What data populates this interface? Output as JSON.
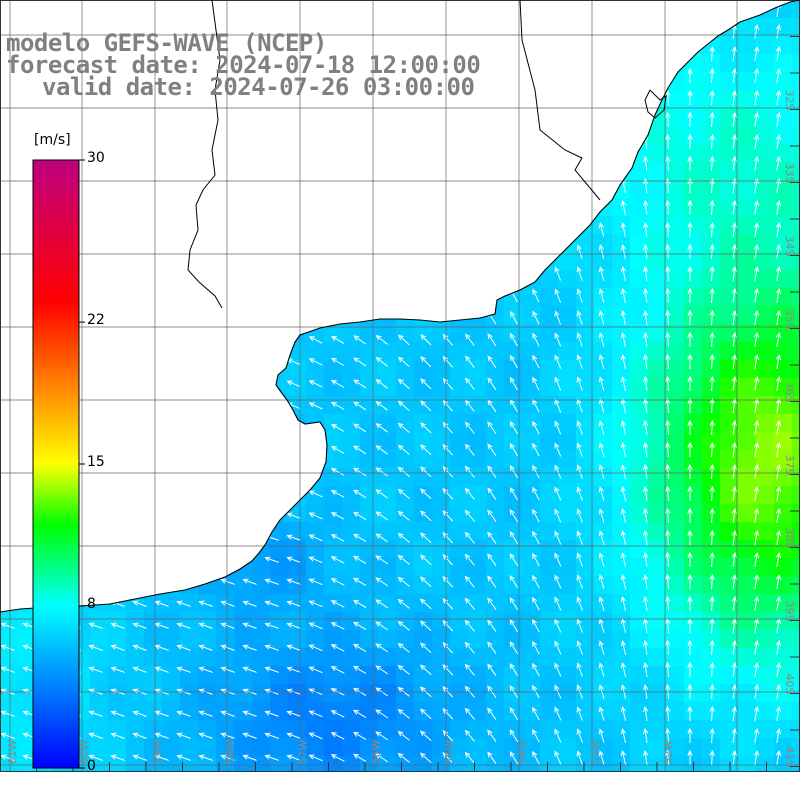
{
  "title": {
    "line1": "modelo GEFS-WAVE (NCEP)",
    "line2": "forecast date: 2024-07-18 12:00:00",
    "line3": "valid date: 2024-07-26 03:00:00"
  },
  "colorbar": {
    "unit": "[m/s]",
    "ticks": [
      {
        "label": "30",
        "value": 30
      },
      {
        "label": "22",
        "value": 22
      },
      {
        "label": "15",
        "value": 15
      },
      {
        "label": "8",
        "value": 8
      },
      {
        "label": "0",
        "value": 0
      }
    ],
    "min": 0,
    "max": 30,
    "stops": [
      {
        "value": 0,
        "color": "#0000ff"
      },
      {
        "value": 4,
        "color": "#0080ff"
      },
      {
        "value": 8,
        "color": "#00ffff"
      },
      {
        "value": 12,
        "color": "#00ff00"
      },
      {
        "value": 15,
        "color": "#ffff00"
      },
      {
        "value": 19,
        "color": "#ff8000"
      },
      {
        "value": 23,
        "color": "#ff0000"
      },
      {
        "value": 30,
        "color": "#c00080"
      }
    ]
  },
  "lat_labels": [
    "32S",
    "33S",
    "34S",
    "35S",
    "36S",
    "37S",
    "38S",
    "39S",
    "40S",
    "41S"
  ],
  "lon_labels": [
    "61W",
    "60W",
    "59W",
    "58W",
    "57W",
    "56W",
    "55W",
    "54W",
    "53W",
    "52W"
  ],
  "field": {
    "description_units": "m/s",
    "wind_direction": "from south-east and east, flow toward north-west and west",
    "speed_west_coast": 6.5,
    "speed_offshore_max": 12
  }
}
